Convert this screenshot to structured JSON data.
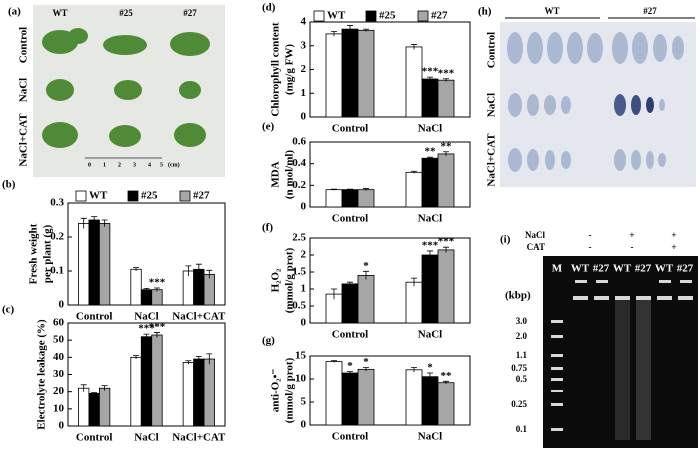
{
  "panel_a": {
    "label": "(a)",
    "columns": [
      "WT",
      "#25",
      "#27"
    ],
    "rows": [
      "Control",
      "NaCl",
      "NaCl+CAT"
    ],
    "scale_ticks": [
      "0",
      "1",
      "2",
      "3",
      "4",
      "5"
    ],
    "scale_unit": "(cm)"
  },
  "panel_h": {
    "label": "(h)",
    "columns": [
      "WT",
      "#27"
    ],
    "rows": [
      "Control",
      "NaCl",
      "NaCl+CAT"
    ]
  },
  "panel_i": {
    "label": "(i)",
    "treatments": [
      {
        "name": "NaCl",
        "signs": [
          "-",
          "+",
          "+"
        ]
      },
      {
        "name": "CAT",
        "signs": [
          "-",
          "-",
          "+"
        ]
      }
    ],
    "lanes": [
      "M",
      "WT",
      "#27",
      "WT",
      "#27",
      "WT",
      "#27"
    ],
    "unit": "(kbp)",
    "markers": [
      "3.0",
      "2.0",
      "1.1",
      "0.75",
      "0.5",
      "0.25",
      "0.1"
    ]
  },
  "chart_data": [
    {
      "type": "bar",
      "panel": "(b)",
      "ylabel": [
        "Fresh weight",
        "per plant (g)"
      ],
      "categories": [
        "Control",
        "NaCl",
        "NaCl+CAT"
      ],
      "ylim": [
        0,
        0.3
      ],
      "yticks": [
        0,
        0.1,
        0.2,
        0.3
      ],
      "legend": true,
      "series": [
        {
          "name": "WT",
          "color": "#ffffff",
          "values": [
            0.24,
            0.105,
            0.1
          ],
          "errors": [
            0.015,
            0.005,
            0.015
          ]
        },
        {
          "name": "#25",
          "color": "#000000",
          "values": [
            0.25,
            0.045,
            0.105
          ],
          "errors": [
            0.01,
            0.004,
            0.015
          ]
        },
        {
          "name": "#27",
          "color": "#a6a6a6",
          "values": [
            0.24,
            0.045,
            0.09
          ],
          "errors": [
            0.01,
            0.005,
            0.012
          ],
          "labels": [
            null,
            "***",
            null
          ]
        }
      ]
    },
    {
      "type": "bar",
      "panel": "(c)",
      "ylabel": [
        "Electrolyte leakage (%)"
      ],
      "categories": [
        "Control",
        "NaCl",
        "NaCl+CAT"
      ],
      "ylim": [
        0,
        60
      ],
      "yticks": [
        0,
        10,
        20,
        30,
        40,
        50,
        60
      ],
      "legend": false,
      "series": [
        {
          "color": "#ffffff",
          "values": [
            22,
            40,
            37
          ],
          "errors": [
            2,
            1,
            1
          ]
        },
        {
          "color": "#000000",
          "values": [
            19,
            52,
            39
          ],
          "errors": [
            0.5,
            1.5,
            1.5
          ],
          "labels": [
            null,
            "***",
            null
          ]
        },
        {
          "color": "#a6a6a6",
          "values": [
            22,
            53,
            39
          ],
          "errors": [
            1.5,
            1.5,
            3
          ],
          "labels": [
            null,
            "***",
            null
          ]
        }
      ]
    },
    {
      "type": "bar",
      "panel": "(d)",
      "ylabel": [
        "Chlorophyll content",
        "(mg/g FW)"
      ],
      "categories": [
        "Control",
        "NaCl"
      ],
      "ylim": [
        0,
        4
      ],
      "yticks": [
        0,
        1,
        2,
        3,
        4
      ],
      "legend": true,
      "series": [
        {
          "name": "WT",
          "color": "#ffffff",
          "values": [
            3.5,
            2.95
          ],
          "errors": [
            0.1,
            0.1
          ]
        },
        {
          "name": "#25",
          "color": "#000000",
          "values": [
            3.7,
            1.6
          ],
          "errors": [
            0.15,
            0.08
          ],
          "labels": [
            null,
            "***"
          ]
        },
        {
          "name": "#27",
          "color": "#a6a6a6",
          "values": [
            3.65,
            1.55
          ],
          "errors": [
            0.05,
            0.06
          ],
          "labels": [
            null,
            "***"
          ]
        }
      ]
    },
    {
      "type": "bar",
      "panel": "(e)",
      "ylabel": [
        "MDA",
        "(n mol/ml)"
      ],
      "categories": [
        "Control",
        "NaCl"
      ],
      "ylim": [
        0,
        0.6
      ],
      "yticks": [
        0,
        0.2,
        0.4,
        0.6
      ],
      "legend": false,
      "series": [
        {
          "color": "#ffffff",
          "values": [
            0.16,
            0.32
          ],
          "errors": [
            0.005,
            0.01
          ]
        },
        {
          "color": "#000000",
          "values": [
            0.16,
            0.45
          ],
          "errors": [
            0.005,
            0.01
          ],
          "labels": [
            null,
            "**"
          ]
        },
        {
          "color": "#a6a6a6",
          "values": [
            0.16,
            0.49
          ],
          "errors": [
            0.01,
            0.02
          ],
          "labels": [
            null,
            "**"
          ]
        }
      ]
    },
    {
      "type": "bar",
      "panel": "(f)",
      "ylabel": [
        "H₂O₂",
        "(mmol/g prot)"
      ],
      "categories": [
        "Control",
        "NaCl"
      ],
      "ylim": [
        0,
        2.5
      ],
      "yticks": [
        0,
        0.5,
        1,
        1.5,
        2,
        2.5
      ],
      "legend": false,
      "series": [
        {
          "color": "#ffffff",
          "values": [
            0.85,
            1.2
          ],
          "errors": [
            0.15,
            0.12
          ]
        },
        {
          "color": "#000000",
          "values": [
            1.15,
            2.0
          ],
          "errors": [
            0.05,
            0.12
          ],
          "labels": [
            null,
            "***"
          ]
        },
        {
          "color": "#a6a6a6",
          "values": [
            1.4,
            2.15
          ],
          "errors": [
            0.12,
            0.08
          ],
          "labels": [
            "*",
            "***"
          ]
        }
      ]
    },
    {
      "type": "bar",
      "panel": "(g)",
      "ylabel": [
        "anti-O₂•⁻",
        "(mmol/g prot)"
      ],
      "categories": [
        "Control",
        "NaCl"
      ],
      "ylim": [
        0,
        15
      ],
      "yticks": [
        0,
        5,
        10,
        15
      ],
      "legend": false,
      "series": [
        {
          "color": "#ffffff",
          "values": [
            13.8,
            12.0
          ],
          "errors": [
            0.2,
            0.5
          ]
        },
        {
          "color": "#000000",
          "values": [
            11.3,
            10.5
          ],
          "errors": [
            0.3,
            0.8
          ],
          "labels": [
            "*",
            "*"
          ]
        },
        {
          "color": "#a6a6a6",
          "values": [
            12.1,
            9.2
          ],
          "errors": [
            0.4,
            0.3
          ],
          "labels": [
            "*",
            "**"
          ]
        }
      ]
    }
  ]
}
